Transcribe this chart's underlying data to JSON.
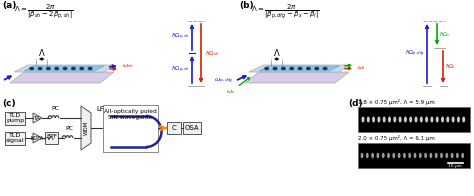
{
  "panel_labels": [
    "(a)",
    "(b)",
    "(c)",
    "(d)"
  ],
  "bg_color": "#ffffff",
  "pump_color": "#1a1acc",
  "signal_color": "#00aa00",
  "idler_color": "#cc2200",
  "energy_blue": "#1a1acc",
  "energy_red": "#cc2200",
  "energy_green": "#00aa00",
  "waveguide_base_color": "#d8cce8",
  "waveguide_top_color": "#c8ddf0",
  "waveguide_ridge_color": "#90c8e8",
  "domain_color": "#223366",
  "fiber_color": "#222299",
  "coupler_color": "#ff8800",
  "box_edge": "#555555",
  "line_color": "#333333",
  "wdm_color": "#444444",
  "d_label1": "1.8 × 0.75 μm², Λ = 5.9 μm",
  "d_label2": "2.0 × 0.75 μm², Λ = 6.1 μm",
  "scale_bar_label": "10 μm"
}
